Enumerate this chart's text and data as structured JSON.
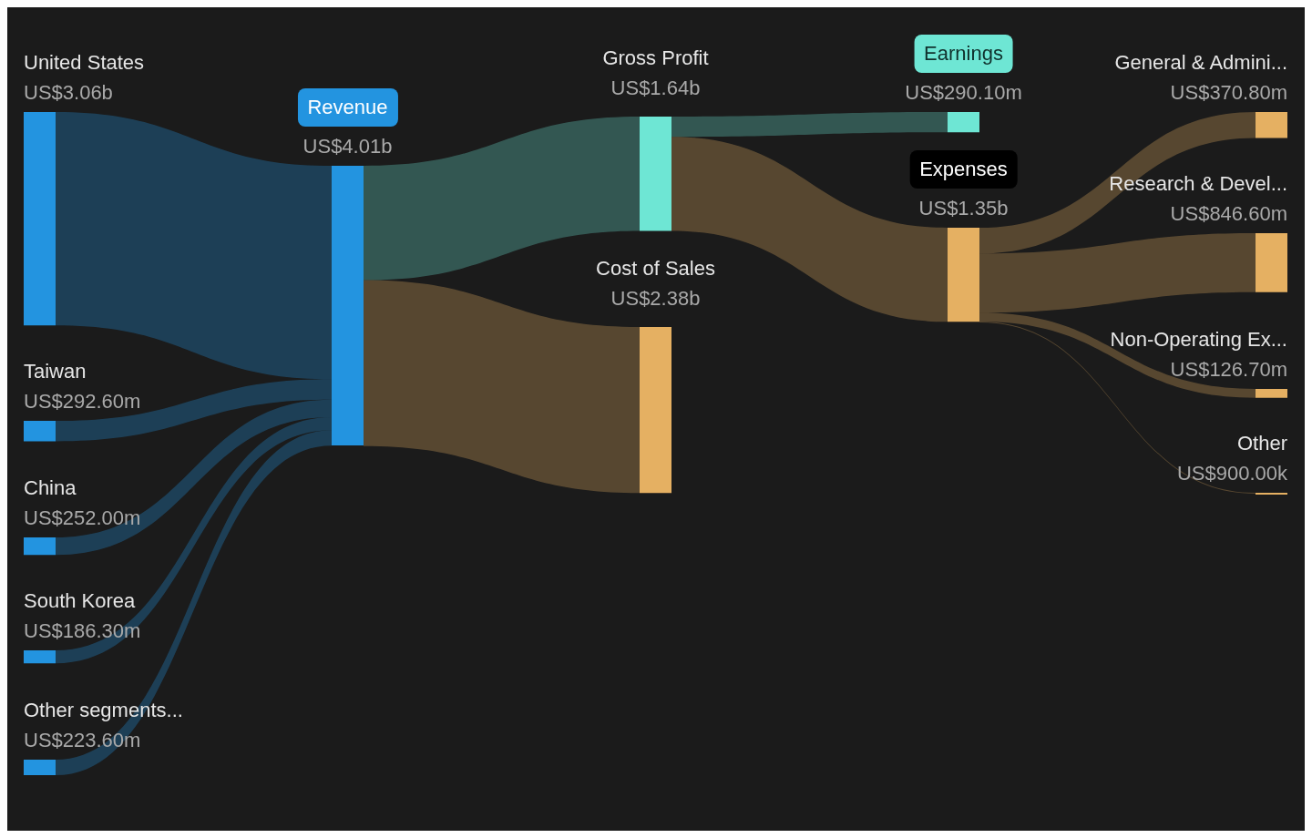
{
  "chart_data": {
    "type": "other",
    "categories": [
      "United States",
      "Taiwan",
      "China",
      "South Korea",
      "Other segments...",
      "Revenue",
      "Gross Profit",
      "Cost of Sales",
      "Earnings",
      "Expenses",
      "General & Admini...",
      "Research & Devel...",
      "Non-Operating Ex...",
      "Other"
    ],
    "values": [
      3060000000,
      292600000,
      252000000,
      186300000,
      223600000,
      4010000000,
      1640000000,
      2380000000,
      290100000,
      1350000000,
      370800000,
      846600000,
      126700000,
      900000
    ],
    "value_labels": [
      "US$3.06b",
      "US$292.60m",
      "US$252.00m",
      "US$186.30m",
      "US$223.60m",
      "US$4.01b",
      "US$1.64b",
      "US$2.38b",
      "US$290.10m",
      "US$1.35b",
      "US$370.80m",
      "US$846.60m",
      "US$126.70m",
      "US$900.00k"
    ],
    "colors": [
      "#2394e0",
      "#2394e0",
      "#2394e0",
      "#2394e0",
      "#2394e0",
      "#2394e0",
      "#6ee6d4",
      "#e5b062",
      "#6ee6d4",
      "#e5b062",
      "#e5b062",
      "#e5b062",
      "#e5b062",
      "#e5b062"
    ]
  }
}
